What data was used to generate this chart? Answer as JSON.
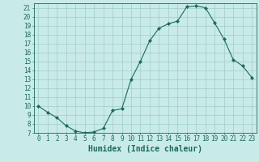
{
  "x": [
    0,
    1,
    2,
    3,
    4,
    5,
    6,
    7,
    8,
    9,
    10,
    11,
    12,
    13,
    14,
    15,
    16,
    17,
    18,
    19,
    20,
    21,
    22,
    23
  ],
  "y": [
    10.0,
    9.3,
    8.7,
    7.8,
    7.2,
    7.0,
    7.1,
    7.5,
    9.5,
    9.7,
    13.0,
    15.0,
    17.3,
    18.7,
    19.2,
    19.5,
    21.1,
    21.2,
    21.0,
    19.3,
    17.5,
    15.2,
    14.5,
    13.2
  ],
  "line_color": "#1a6b5a",
  "marker_color": "#1a6b5a",
  "bg_color": "#c8ebe8",
  "grid_color": "#a0ccc8",
  "xlabel": "Humidex (Indice chaleur)",
  "ylim": [
    7,
    21.5
  ],
  "xlim": [
    -0.5,
    23.5
  ],
  "yticks": [
    7,
    8,
    9,
    10,
    11,
    12,
    13,
    14,
    15,
    16,
    17,
    18,
    19,
    20,
    21
  ],
  "xticks": [
    0,
    1,
    2,
    3,
    4,
    5,
    6,
    7,
    8,
    9,
    10,
    11,
    12,
    13,
    14,
    15,
    16,
    17,
    18,
    19,
    20,
    21,
    22,
    23
  ],
  "tick_color": "#1a6b5a",
  "label_fontsize": 5.5,
  "xlabel_fontsize": 7
}
